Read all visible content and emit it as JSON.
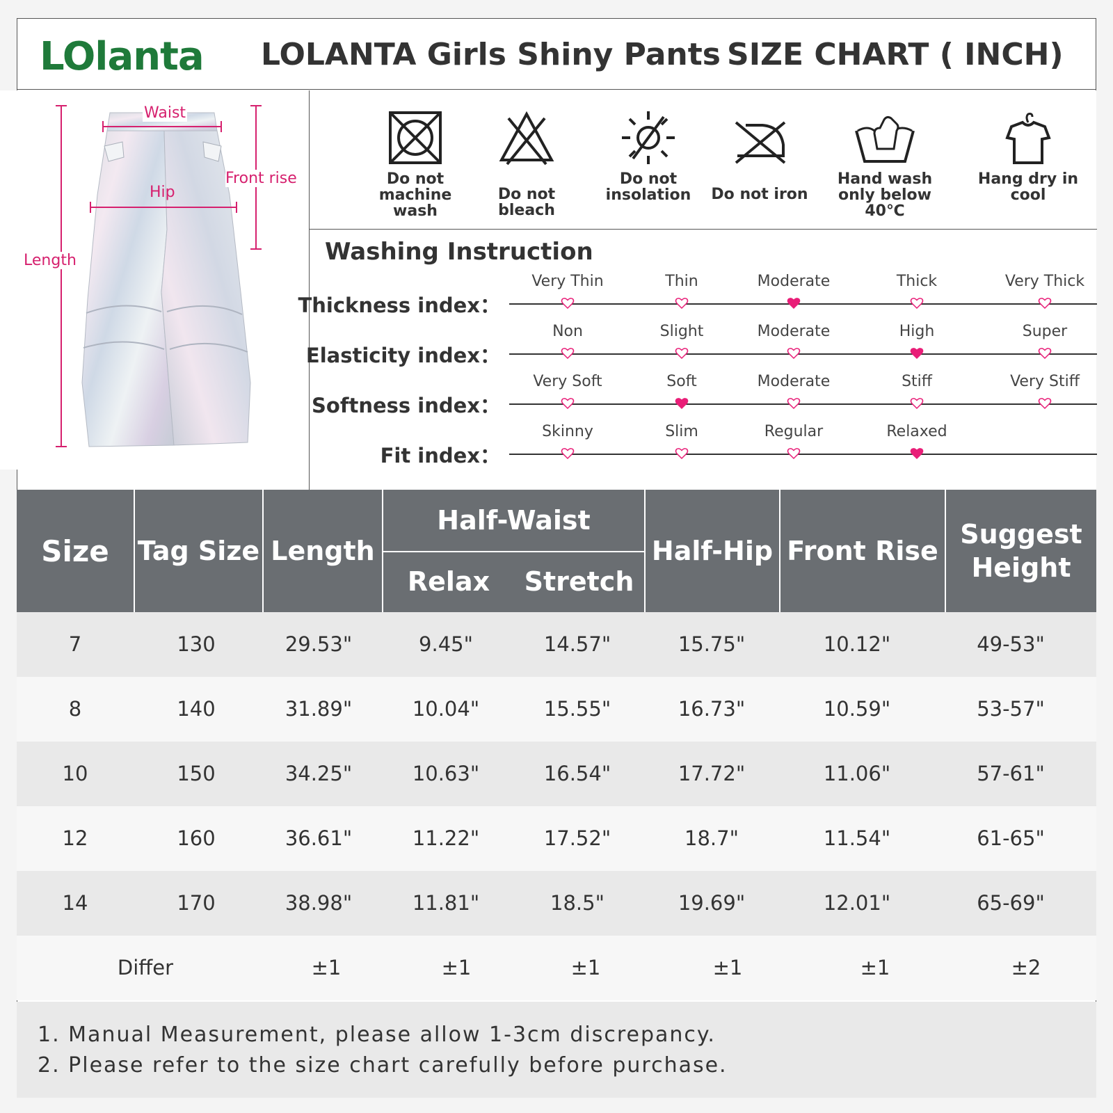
{
  "header": {
    "logo": "LOlanta",
    "title": "LOLANTA Girls Shiny Pants",
    "subtitle": "SIZE CHART ( INCH)"
  },
  "diagram": {
    "waist": "Waist",
    "hip": "Hip",
    "front_rise": "Front rise",
    "length": "Length"
  },
  "care": [
    {
      "icon": "no-machine-wash-icon",
      "label": "Do not machine wash"
    },
    {
      "icon": "no-bleach-icon",
      "label": "Do not bleach"
    },
    {
      "icon": "no-insolation-icon",
      "label": "Do not insolation"
    },
    {
      "icon": "no-iron-icon",
      "label": "Do not iron"
    },
    {
      "icon": "hand-wash-icon",
      "label": "Hand wash only below 40℃"
    },
    {
      "icon": "hang-dry-icon",
      "label": "Hang dry in cool"
    }
  ],
  "washing_title": "Washing Instruction",
  "indexes": [
    {
      "label": "Thickness index：",
      "options": [
        "Very Thin",
        "Thin",
        "Moderate",
        "Thick",
        "Very Thick"
      ],
      "selected": "Moderate"
    },
    {
      "label": "Elasticity index：",
      "options": [
        "Non",
        "Slight",
        "Moderate",
        "High",
        "Super"
      ],
      "selected": "High"
    },
    {
      "label": "Softness index：",
      "options": [
        "Very Soft",
        "Soft",
        "Moderate",
        "Stiff",
        "Very Stiff"
      ],
      "selected": "Soft"
    },
    {
      "label": "Fit index：",
      "options": [
        "Skinny",
        "Slim",
        "Regular",
        "Relaxed"
      ],
      "selected": "Relaxed"
    }
  ],
  "table": {
    "headers": {
      "size": "Size",
      "tag_size": "Tag Size",
      "length": "Length",
      "half_waist": "Half-Waist",
      "relax": "Relax",
      "stretch": "Stretch",
      "half_hip": "Half-Hip",
      "front_rise": "Front Rise",
      "suggest_height": "Suggest Height"
    },
    "rows": [
      [
        "7",
        "130",
        "29.53\"",
        "9.45\"",
        "14.57\"",
        "15.75\"",
        "10.12\"",
        "49-53\""
      ],
      [
        "8",
        "140",
        "31.89\"",
        "10.04\"",
        "15.55\"",
        "16.73\"",
        "10.59\"",
        "53-57\""
      ],
      [
        "10",
        "150",
        "34.25\"",
        "10.63\"",
        "16.54\"",
        "17.72\"",
        "11.06\"",
        "57-61\""
      ],
      [
        "12",
        "160",
        "36.61\"",
        "11.22\"",
        "17.52\"",
        "18.7\"",
        "11.54\"",
        "61-65\""
      ],
      [
        "14",
        "170",
        "38.98\"",
        "11.81\"",
        "18.5\"",
        "19.69\"",
        "12.01\"",
        "65-69\""
      ]
    ],
    "differ": {
      "label": "Differ",
      "values": [
        "±1",
        "±1",
        "±1",
        "±1",
        "±1",
        "±2"
      ]
    }
  },
  "notes": [
    "1. Manual Measurement, please allow 1-3cm discrepancy.",
    "2. Please refer to the size chart carefully before purchase."
  ],
  "colors": {
    "logo_green": "#1f7a3a",
    "measure_pink": "#d6206e",
    "heart_pink": "#e91e78",
    "header_gray": "#6a6e72"
  }
}
